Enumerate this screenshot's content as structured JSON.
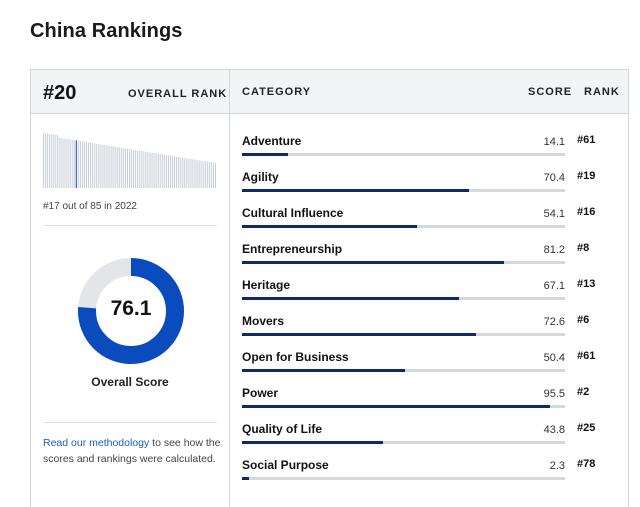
{
  "page_title": "China Rankings",
  "header": {
    "rank_value": "#20",
    "rank_label": "OVERALL RANK",
    "col_category": "CATEGORY",
    "col_score": "SCORE",
    "col_rank": "RANK"
  },
  "history": {
    "note": "#17 out of 85 in 2022",
    "highlight_index": 16,
    "bar_count": 85
  },
  "overall": {
    "score": "76.1",
    "score_fraction": 0.761,
    "label": "Overall Score"
  },
  "methodology": {
    "link_text": "Read our methodology",
    "rest_text": " to see how the scores and rankings were calculated."
  },
  "colors": {
    "accent_blue": "#0a4bbd",
    "donut_track": "#e3e5e8",
    "bar_fill": "#0f2a6b",
    "link": "#1561c4"
  },
  "categories": [
    {
      "name": "Adventure",
      "score": "14.1",
      "rank": "#61",
      "value": 14.1
    },
    {
      "name": "Agility",
      "score": "70.4",
      "rank": "#19",
      "value": 70.4
    },
    {
      "name": "Cultural Influence",
      "score": "54.1",
      "rank": "#16",
      "value": 54.1
    },
    {
      "name": "Entrepreneurship",
      "score": "81.2",
      "rank": "#8",
      "value": 81.2
    },
    {
      "name": "Heritage",
      "score": "67.1",
      "rank": "#13",
      "value": 67.1
    },
    {
      "name": "Movers",
      "score": "72.6",
      "rank": "#6",
      "value": 72.6
    },
    {
      "name": "Open for Business",
      "score": "50.4",
      "rank": "#61",
      "value": 50.4
    },
    {
      "name": "Power",
      "score": "95.5",
      "rank": "#2",
      "value": 95.5
    },
    {
      "name": "Quality of Life",
      "score": "43.8",
      "rank": "#25",
      "value": 43.8
    },
    {
      "name": "Social Purpose",
      "score": "2.3",
      "rank": "#78",
      "value": 2.3
    }
  ]
}
